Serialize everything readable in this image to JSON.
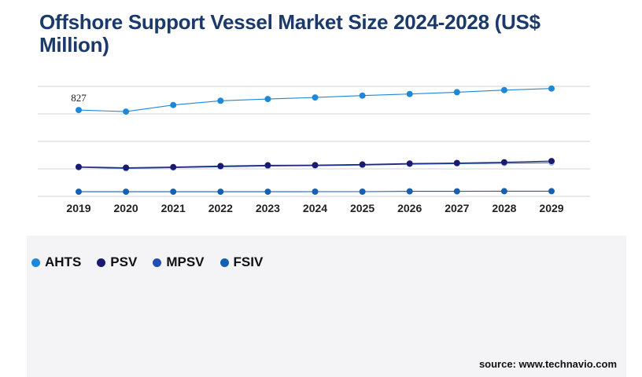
{
  "title": "Offshore Support Vessel Market Size 2024-2028 (US$ Million)",
  "source": "source: www.technavio.com",
  "chart_data": {
    "type": "line",
    "title": "Offshore Support Vessel Market Size 2024-2028 (US$ Million)",
    "xlabel": "",
    "ylabel": "",
    "categories": [
      "2019",
      "2020",
      "2021",
      "2022",
      "2023",
      "2024",
      "2025",
      "2026",
      "2027",
      "2028",
      "2029"
    ],
    "ylim": [
      0,
      1000
    ],
    "grid": true,
    "legend_position": "bottom-left",
    "series": [
      {
        "name": "AHTS",
        "color": "#1e88d8",
        "values": [
          827,
          812,
          875,
          915,
          932,
          947,
          965,
          980,
          997,
          1017,
          1032
        ]
      },
      {
        "name": "PSV",
        "color": "#1a1a6e",
        "values": [
          285,
          277,
          283,
          293,
          300,
          302,
          308,
          317,
          322,
          329,
          340
        ]
      },
      {
        "name": "MPSV",
        "color": "#1f4fb5",
        "values": [
          280,
          270,
          278,
          286,
          292,
          297,
          302,
          310,
          315,
          320,
          325
        ]
      },
      {
        "name": "FSIV",
        "color": "#1560b0",
        "values": [
          48,
          48,
          48,
          48,
          48,
          49,
          49,
          52,
          52,
          53,
          53
        ]
      }
    ],
    "point_colors": {
      "MPSV": "#a9c8f5"
    },
    "data_labels": [
      {
        "series": "AHTS",
        "index": 0,
        "text": "827"
      }
    ]
  }
}
